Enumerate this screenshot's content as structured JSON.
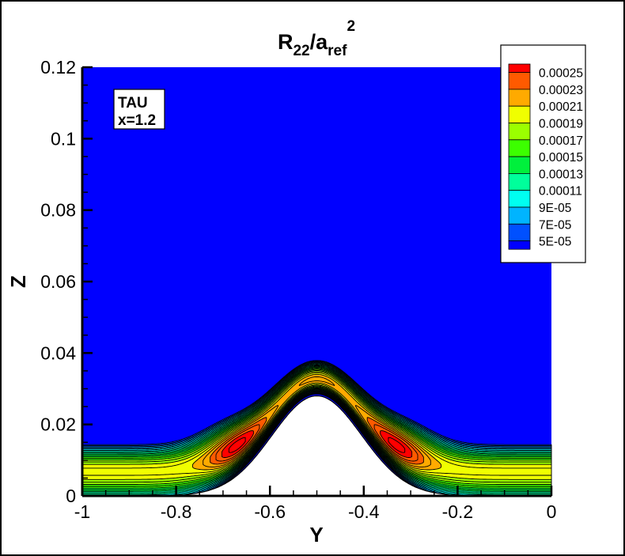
{
  "chart_data": {
    "type": "contour",
    "title": {
      "main": "R",
      "sub1": "22",
      "mid": "/a",
      "sub2": "ref",
      "sup": "2"
    },
    "xlabel": "Y",
    "ylabel": "Z",
    "xlim": [
      -1,
      0
    ],
    "ylim": [
      0,
      0.12
    ],
    "xticks": [
      "-1",
      "-0.8",
      "-0.6",
      "-0.4",
      "-0.2",
      "0"
    ],
    "xtick_values": [
      -1,
      -0.8,
      -0.6,
      -0.4,
      -0.2,
      0
    ],
    "yticks": [
      "0",
      "0.02",
      "0.04",
      "0.06",
      "0.08",
      "0.1",
      "0.12"
    ],
    "ytick_values": [
      0,
      0.02,
      0.04,
      0.06,
      0.08,
      0.1,
      0.12
    ],
    "grid": false,
    "legend_position": "top-right",
    "legend_labels": [
      "0.00025",
      "0.00023",
      "0.00021",
      "0.00019",
      "0.00017",
      "0.00015",
      "0.00013",
      "0.00011",
      "9E-05",
      "7E-05",
      "5E-05"
    ],
    "levels": [
      5e-05,
      7e-05,
      9e-05,
      0.00011,
      0.00013,
      0.00015,
      0.00017,
      0.00019,
      0.00021,
      0.00023,
      0.00025
    ],
    "line_level_step": 1e-05,
    "colors": [
      "#0000ff",
      "#0050ff",
      "#00b4ff",
      "#00fff0",
      "#00ff9b",
      "#00f03c",
      "#3cff00",
      "#9bff00",
      "#f0ff00",
      "#ffaa00",
      "#ff5a00",
      "#ff0000"
    ],
    "wall_color": "#ffffff",
    "wall_peak": {
      "y": -0.5,
      "z": 0.028
    },
    "annotation": [
      "TAU",
      "x=1.2"
    ]
  }
}
